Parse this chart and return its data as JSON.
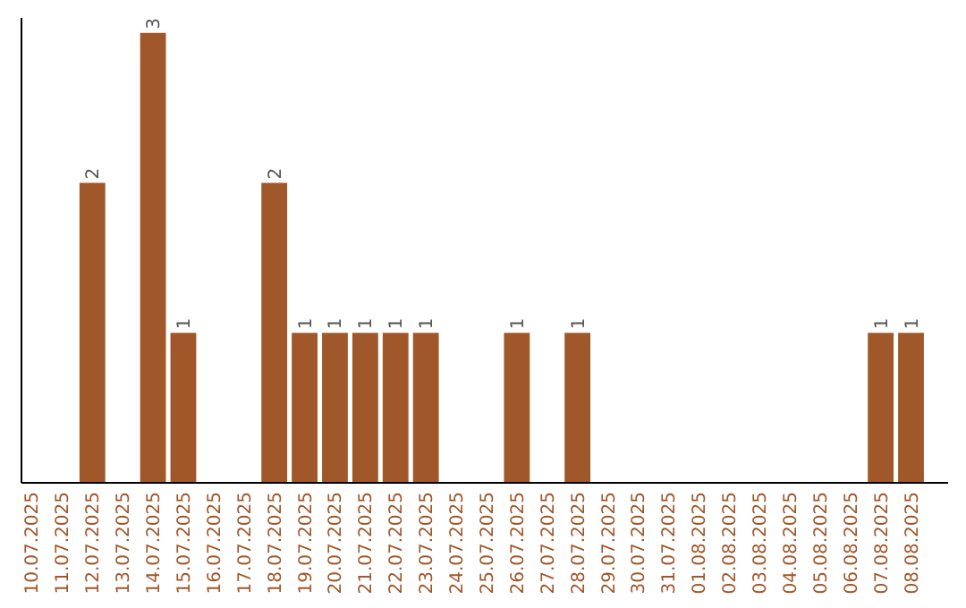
{
  "chart_data": {
    "type": "bar",
    "categories": [
      "10.07.2025",
      "11.07.2025",
      "12.07.2025",
      "13.07.2025",
      "14.07.2025",
      "15.07.2025",
      "16.07.2025",
      "17.07.2025",
      "18.07.2025",
      "19.07.2025",
      "20.07.2025",
      "21.07.2025",
      "22.07.2025",
      "23.07.2025",
      "24.07.2025",
      "25.07.2025",
      "26.07.2025",
      "27.07.2025",
      "28.07.2025",
      "29.07.2025",
      "30.07.2025",
      "31.07.2025",
      "01.08.2025",
      "02.08.2025",
      "03.08.2025",
      "04.08.2025",
      "05.08.2025",
      "06.08.2025",
      "07.08.2025",
      "08.08.2025"
    ],
    "values": [
      0,
      0,
      2,
      0,
      3,
      1,
      0,
      0,
      2,
      1,
      1,
      1,
      1,
      1,
      0,
      0,
      1,
      0,
      1,
      0,
      0,
      0,
      0,
      0,
      0,
      0,
      0,
      0,
      1,
      1
    ],
    "value_labels": [
      null,
      null,
      "2",
      null,
      "3",
      "1",
      null,
      null,
      "2",
      "1",
      "1",
      "1",
      "1",
      "1",
      null,
      null,
      "1",
      null,
      "1",
      null,
      null,
      null,
      null,
      null,
      null,
      null,
      null,
      null,
      "1",
      "1"
    ],
    "color": "#a0572a",
    "ylim": [
      0,
      3.1
    ],
    "tick_labels": "x",
    "grid": false
  }
}
